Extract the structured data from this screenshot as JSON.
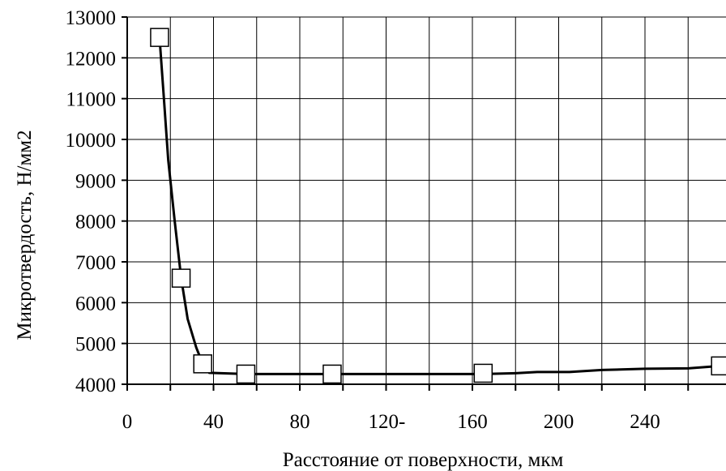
{
  "chart_data": {
    "type": "line",
    "title": "",
    "xlabel": "Расстояние от поверхности, мкм",
    "ylabel": "Микротвердость, Н/мм2",
    "xlim": [
      0,
      280
    ],
    "ylim": [
      4000,
      13000
    ],
    "grid": true,
    "legend": "none",
    "x_ticks": [
      "0",
      "40",
      "80",
      "120-",
      "160",
      "200",
      "240"
    ],
    "x_tick_values": [
      0,
      40,
      80,
      120,
      160,
      200,
      240
    ],
    "y_ticks": [
      "4000",
      "5000",
      "6000",
      "7000",
      "8000",
      "9000",
      "10000",
      "11000",
      "12000",
      "13000"
    ],
    "y_tick_values": [
      4000,
      5000,
      6000,
      7000,
      8000,
      9000,
      10000,
      11000,
      12000,
      13000
    ],
    "series": [
      {
        "marker": "square",
        "color": "#000000",
        "points": [
          {
            "x": 15,
            "y": 12500
          },
          {
            "x": 25,
            "y": 6600
          },
          {
            "x": 35,
            "y": 4500
          },
          {
            "x": 55,
            "y": 4250
          },
          {
            "x": 95,
            "y": 4250
          },
          {
            "x": 165,
            "y": 4270
          },
          {
            "x": 275,
            "y": 4450
          }
        ],
        "curve": [
          {
            "x": 15,
            "y": 12500
          },
          {
            "x": 17,
            "y": 11000
          },
          {
            "x": 19,
            "y": 9500
          },
          {
            "x": 22,
            "y": 8000
          },
          {
            "x": 25,
            "y": 6600
          },
          {
            "x": 28,
            "y": 5600
          },
          {
            "x": 32,
            "y": 4900
          },
          {
            "x": 35,
            "y": 4500
          },
          {
            "x": 38,
            "y": 4280
          },
          {
            "x": 55,
            "y": 4250
          },
          {
            "x": 95,
            "y": 4250
          },
          {
            "x": 165,
            "y": 4250
          },
          {
            "x": 180,
            "y": 4270
          },
          {
            "x": 190,
            "y": 4300
          },
          {
            "x": 205,
            "y": 4300
          },
          {
            "x": 220,
            "y": 4350
          },
          {
            "x": 240,
            "y": 4380
          },
          {
            "x": 260,
            "y": 4390
          },
          {
            "x": 275,
            "y": 4450
          }
        ]
      }
    ]
  }
}
